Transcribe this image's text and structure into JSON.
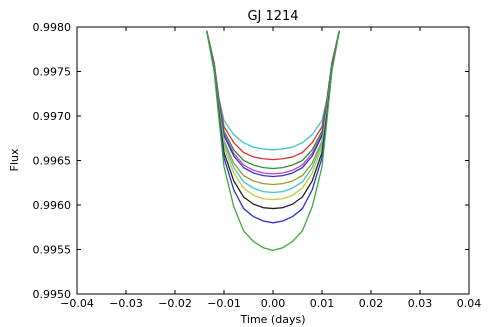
{
  "chart_data": {
    "type": "line",
    "title": "GJ 1214",
    "xlabel": "Time (days)",
    "ylabel": "Flux",
    "xlim": [
      -0.04,
      0.04
    ],
    "ylim": [
      0.995,
      0.998
    ],
    "x_tick_labels": [
      "−0.04",
      "−0.03",
      "−0.02",
      "−0.01",
      "0.00",
      "0.01",
      "0.02",
      "0.03",
      "0.04"
    ],
    "y_tick_labels": [
      "0.9950",
      "0.9955",
      "0.9960",
      "0.9965",
      "0.9970",
      "0.9975",
      "0.9980"
    ],
    "grid": false,
    "legend": "none",
    "series": [
      {
        "color": "#3ec8c8",
        "x": [
          -0.0135,
          -0.012,
          -0.011,
          -0.01,
          -0.008,
          -0.006,
          -0.004,
          -0.002,
          0.0,
          0.002,
          0.004,
          0.006,
          0.008,
          0.01,
          0.011,
          0.012,
          0.0135
        ],
        "y": [
          0.99795,
          0.99757,
          0.99719,
          0.99695,
          0.99679,
          0.9967,
          0.99665,
          0.99663,
          0.99662,
          0.99663,
          0.99665,
          0.9967,
          0.99679,
          0.99695,
          0.99719,
          0.99757,
          0.99795
        ]
      },
      {
        "color": "#e03030",
        "x": [
          -0.0135,
          -0.012,
          -0.011,
          -0.01,
          -0.008,
          -0.006,
          -0.004,
          -0.002,
          0.0,
          0.002,
          0.004,
          0.006,
          0.008,
          0.01,
          0.011,
          0.012,
          0.0135
        ],
        "y": [
          0.99795,
          0.9976,
          0.99718,
          0.99688,
          0.9967,
          0.99659,
          0.99654,
          0.99652,
          0.99651,
          0.99652,
          0.99654,
          0.99659,
          0.9967,
          0.99688,
          0.99718,
          0.9976,
          0.99795
        ]
      },
      {
        "color": "#2f8f2f",
        "x": [
          -0.0135,
          -0.012,
          -0.011,
          -0.01,
          -0.008,
          -0.006,
          -0.004,
          -0.002,
          0.0,
          0.002,
          0.004,
          0.006,
          0.008,
          0.01,
          0.011,
          0.012,
          0.0135
        ],
        "y": [
          0.99795,
          0.99758,
          0.99715,
          0.99683,
          0.99662,
          0.9965,
          0.99645,
          0.99642,
          0.99641,
          0.99642,
          0.99645,
          0.9965,
          0.99662,
          0.99683,
          0.99715,
          0.99758,
          0.99795
        ]
      },
      {
        "color": "#c040c0",
        "x": [
          -0.0135,
          -0.012,
          -0.011,
          -0.01,
          -0.008,
          -0.006,
          -0.004,
          -0.002,
          0.0,
          0.002,
          0.004,
          0.006,
          0.008,
          0.01,
          0.011,
          0.012,
          0.0135
        ],
        "y": [
          0.99795,
          0.99757,
          0.99713,
          0.9968,
          0.99658,
          0.99645,
          0.99639,
          0.99636,
          0.99635,
          0.99636,
          0.99639,
          0.99645,
          0.99658,
          0.9968,
          0.99713,
          0.99757,
          0.99795
        ]
      },
      {
        "color": "#3333cc",
        "x": [
          -0.0135,
          -0.012,
          -0.011,
          -0.01,
          -0.008,
          -0.006,
          -0.004,
          -0.002,
          0.0,
          0.002,
          0.004,
          0.006,
          0.008,
          0.01,
          0.011,
          0.012,
          0.0135
        ],
        "y": [
          0.99795,
          0.99756,
          0.99712,
          0.99678,
          0.99655,
          0.99642,
          0.99636,
          0.99633,
          0.99632,
          0.99633,
          0.99636,
          0.99642,
          0.99655,
          0.99678,
          0.99712,
          0.99756,
          0.99795
        ]
      },
      {
        "color": "#9a9a2a",
        "x": [
          -0.0135,
          -0.012,
          -0.011,
          -0.01,
          -0.008,
          -0.006,
          -0.004,
          -0.002,
          0.0,
          0.002,
          0.004,
          0.006,
          0.008,
          0.01,
          0.011,
          0.012,
          0.0135
        ],
        "y": [
          0.99795,
          0.99755,
          0.99709,
          0.99672,
          0.99647,
          0.99633,
          0.99627,
          0.99624,
          0.99623,
          0.99624,
          0.99627,
          0.99633,
          0.99647,
          0.99672,
          0.99709,
          0.99755,
          0.99795
        ]
      },
      {
        "color": "#3ec8c8",
        "x": [
          -0.0135,
          -0.012,
          -0.011,
          -0.01,
          -0.008,
          -0.006,
          -0.004,
          -0.002,
          0.0,
          0.002,
          0.004,
          0.006,
          0.008,
          0.01,
          0.011,
          0.012,
          0.0135
        ],
        "y": [
          0.99795,
          0.99754,
          0.99707,
          0.99669,
          0.99642,
          0.99626,
          0.99619,
          0.99615,
          0.99614,
          0.99615,
          0.99619,
          0.99626,
          0.99642,
          0.99669,
          0.99707,
          0.99754,
          0.99795
        ]
      },
      {
        "color": "#c8c83a",
        "x": [
          -0.0135,
          -0.012,
          -0.011,
          -0.01,
          -0.008,
          -0.006,
          -0.004,
          -0.002,
          0.0,
          0.002,
          0.004,
          0.006,
          0.008,
          0.01,
          0.011,
          0.012,
          0.0135
        ],
        "y": [
          0.99795,
          0.99753,
          0.99705,
          0.99665,
          0.99636,
          0.99619,
          0.99611,
          0.99607,
          0.99606,
          0.99607,
          0.99611,
          0.99619,
          0.99636,
          0.99665,
          0.99705,
          0.99753,
          0.99795
        ]
      },
      {
        "color": "#222222",
        "x": [
          -0.0135,
          -0.012,
          -0.011,
          -0.01,
          -0.008,
          -0.006,
          -0.004,
          -0.002,
          0.0,
          0.002,
          0.004,
          0.006,
          0.008,
          0.01,
          0.011,
          0.012,
          0.0135
        ],
        "y": [
          0.99795,
          0.99752,
          0.99702,
          0.99659,
          0.99627,
          0.99609,
          0.99601,
          0.99597,
          0.99596,
          0.99597,
          0.99601,
          0.99609,
          0.99627,
          0.99659,
          0.99702,
          0.99752,
          0.99795
        ]
      },
      {
        "color": "#2f2fd0",
        "x": [
          -0.0135,
          -0.012,
          -0.011,
          -0.01,
          -0.008,
          -0.006,
          -0.004,
          -0.002,
          0.0,
          0.002,
          0.004,
          0.006,
          0.008,
          0.01,
          0.011,
          0.012,
          0.0135
        ],
        "y": [
          0.99795,
          0.99751,
          0.99699,
          0.99653,
          0.99617,
          0.99596,
          0.99587,
          0.99582,
          0.9958,
          0.99582,
          0.99587,
          0.99596,
          0.99617,
          0.99653,
          0.99699,
          0.99751,
          0.99795
        ]
      },
      {
        "color": "#3aa83a",
        "x": [
          -0.0135,
          -0.012,
          -0.011,
          -0.01,
          -0.008,
          -0.006,
          -0.004,
          -0.002,
          0.0,
          0.002,
          0.004,
          0.006,
          0.008,
          0.01,
          0.011,
          0.012,
          0.0135
        ],
        "y": [
          0.99795,
          0.9975,
          0.99695,
          0.99643,
          0.99598,
          0.99571,
          0.99559,
          0.99552,
          0.99549,
          0.99552,
          0.99559,
          0.99571,
          0.99598,
          0.99643,
          0.99695,
          0.9975,
          0.99795
        ]
      }
    ]
  }
}
